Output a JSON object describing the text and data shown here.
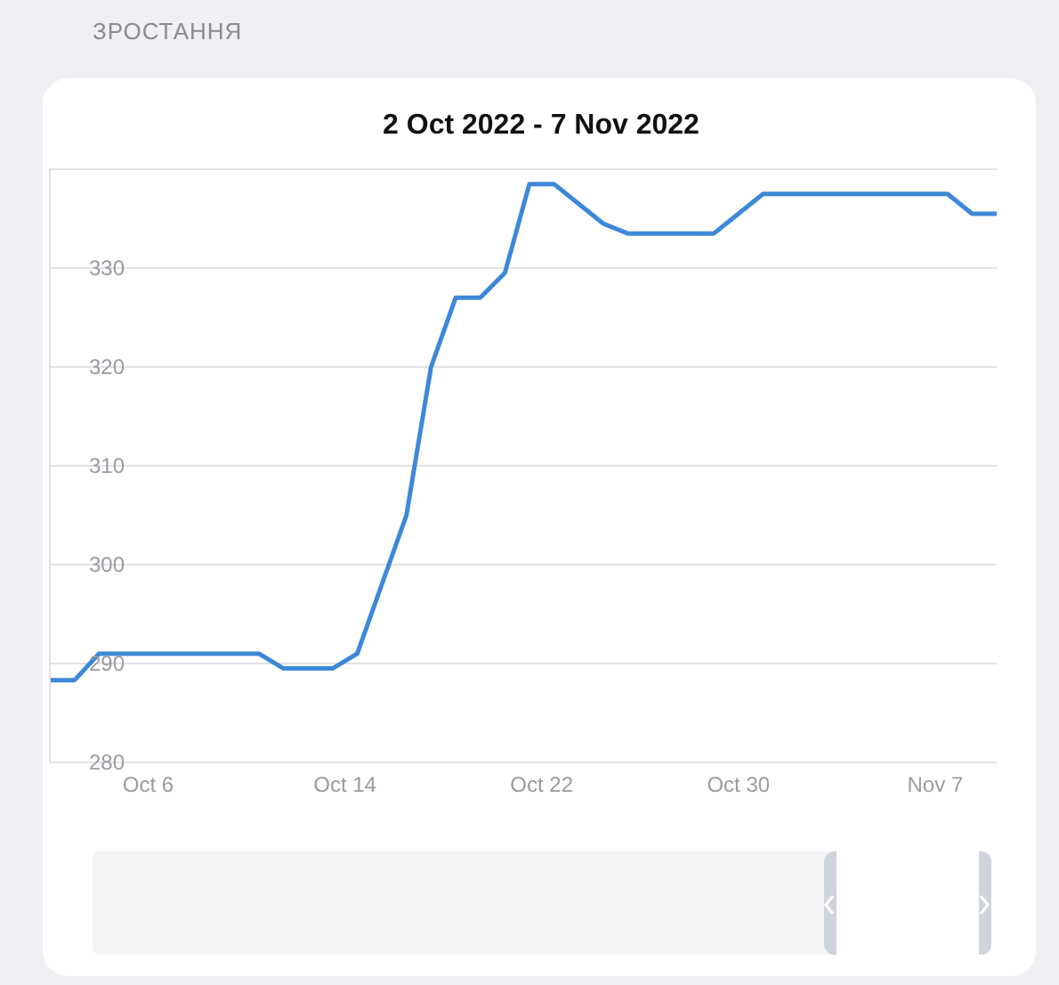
{
  "chart_data": {
    "type": "line",
    "title": "ЗРОСТАННЯ",
    "subtitle": "2 Oct 2022 - 7 Nov 2022",
    "x": [
      "2022-10-02",
      "2022-10-03",
      "2022-10-04",
      "2022-10-10T12:00",
      "2022-10-11T12:00",
      "2022-10-13T12:00",
      "2022-10-14T12:00",
      "2022-10-16T12:00",
      "2022-10-17T12:00",
      "2022-10-18T12:00",
      "2022-10-19T12:00",
      "2022-10-20T12:00",
      "2022-10-21T12:00",
      "2022-10-22T12:00",
      "2022-10-24T12:00",
      "2022-10-25T12:00",
      "2022-10-29",
      "2022-10-31",
      "2022-11-07T12:00",
      "2022-11-08T12:00",
      "2022-11-09T12:00"
    ],
    "series": [
      {
        "color": "#3d88d8",
        "values": [
          288.3,
          288.3,
          291,
          291,
          289.5,
          289.5,
          291,
          305,
          320,
          327,
          327,
          329.5,
          338.5,
          338.5,
          334.5,
          333.5,
          333.5,
          337.5,
          337.5,
          335.5,
          335.5
        ]
      }
    ],
    "xlim": [
      "2022-10-02",
      "2022-11-09T12:00"
    ],
    "xticks": [
      {
        "value": "2022-10-06",
        "label": "Oct 6"
      },
      {
        "value": "2022-10-14",
        "label": "Oct 14"
      },
      {
        "value": "2022-10-22",
        "label": "Oct 22"
      },
      {
        "value": "2022-10-30",
        "label": "Oct 30"
      },
      {
        "value": "2022-11-07",
        "label": "Nov 7"
      }
    ],
    "ylim": [
      280,
      340
    ],
    "yticks": [
      280,
      290,
      300,
      310,
      320,
      330
    ],
    "grid": "y"
  }
}
